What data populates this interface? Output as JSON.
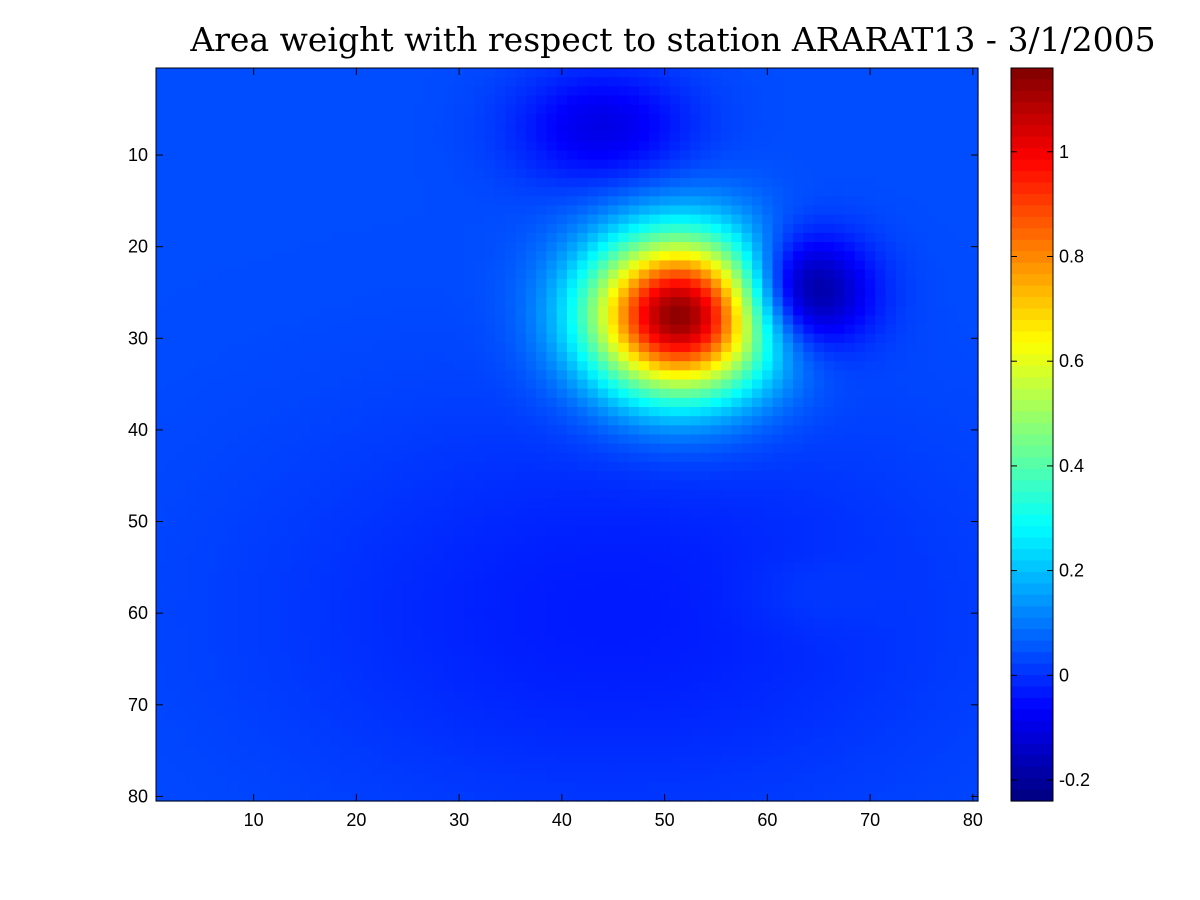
{
  "chart_data": {
    "type": "heatmap",
    "title": "Area weight with respect to station ARARAT13 - 3/1/2005",
    "xlabel": "",
    "ylabel": "",
    "grid": false,
    "x_range": [
      1,
      80
    ],
    "y_range": [
      1,
      80
    ],
    "y_reversed": true,
    "x_ticks": [
      "10",
      "20",
      "30",
      "40",
      "50",
      "60",
      "70",
      "80"
    ],
    "y_ticks": [
      "10",
      "20",
      "30",
      "40",
      "50",
      "60",
      "70",
      "80"
    ],
    "colorbar": {
      "colormap": "jet",
      "clim": [
        -0.24,
        1.16
      ],
      "ticks": [
        "1",
        "0.8",
        "0.6",
        "0.4",
        "0.2",
        "0",
        "-0.2"
      ]
    },
    "field": {
      "background": 0.04,
      "components": [
        {
          "description": "main positive peak",
          "x": 51.5,
          "y": 27.5,
          "amplitude": 1.12,
          "sigma_x": 6.2,
          "sigma_y": 6.0
        },
        {
          "description": "negative lobe upper right",
          "x": 63,
          "y": 25,
          "amplitude": -0.34,
          "sigma_x": 4.5,
          "sigma_y": 4.2
        },
        {
          "description": "negative lobe top",
          "x": 44,
          "y": 7,
          "amplitude": -0.14,
          "sigma_x": 6.0,
          "sigma_y": 4.5
        },
        {
          "description": "central depression",
          "x": 45,
          "y": 60,
          "amplitude": -0.07,
          "sigma_x": 24,
          "sigma_y": 16
        },
        {
          "description": "slight rise lower right",
          "x": 64,
          "y": 58,
          "amplitude": 0.02,
          "sigma_x": 5,
          "sigma_y": 3
        }
      ]
    }
  }
}
